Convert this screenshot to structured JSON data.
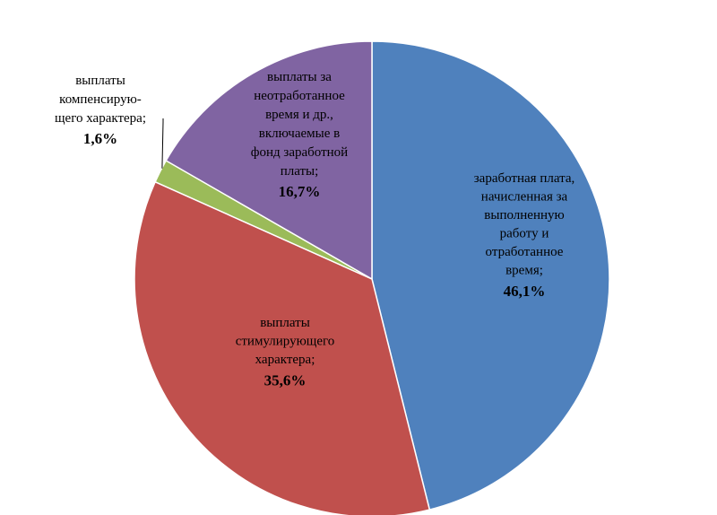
{
  "chart_data": {
    "type": "pie",
    "slices": [
      {
        "label_lines": [
          "заработная плата,",
          "начисленная за",
          "выполненную",
          "работу и",
          "отработанное",
          "время;"
        ],
        "value": 46.1,
        "value_text": "46,1%",
        "color": "#4F81BD"
      },
      {
        "label_lines": [
          "выплаты",
          "стимулирующего",
          "характера;"
        ],
        "value": 35.6,
        "value_text": "35,6%",
        "color": "#C0504D"
      },
      {
        "label_lines": [
          "выплаты",
          "компенсирую-",
          "щего характера;"
        ],
        "value": 1.6,
        "value_text": "1,6%",
        "color": "#9BBB59"
      },
      {
        "label_lines": [
          "выплаты за",
          "неотработанное",
          "время и др.,",
          "включаемые в",
          "фонд заработной",
          "платы;"
        ],
        "value": 16.7,
        "value_text": "16,7%",
        "color": "#8064A2"
      }
    ]
  }
}
